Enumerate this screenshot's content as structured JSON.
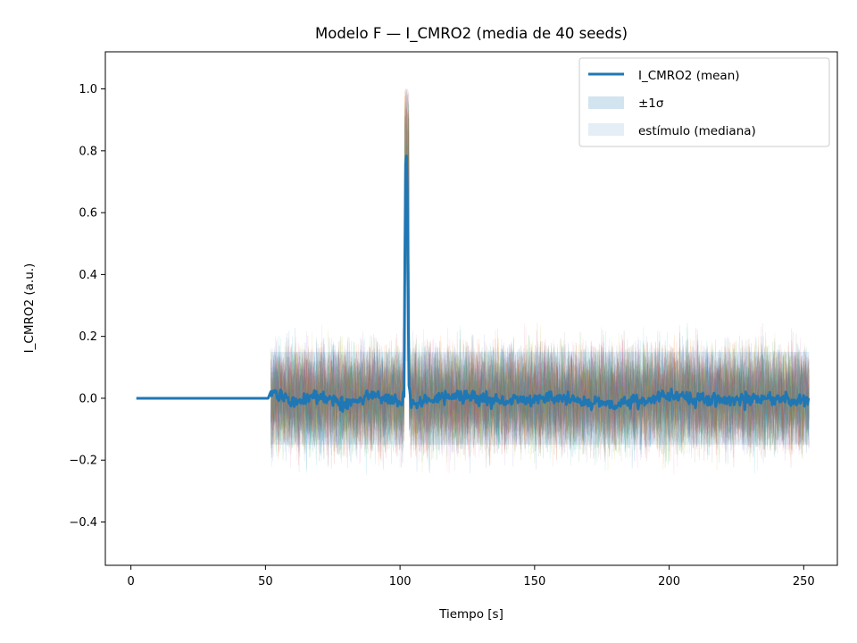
{
  "chart_data": {
    "type": "line",
    "title": "Modelo F — I_CMRO2 (media de 40 seeds)",
    "xlabel": "Tiempo [s]",
    "ylabel": "I_CMRO2 (a.u.)",
    "xlim": [
      -9.5,
      262.5
    ],
    "ylim": [
      -0.54,
      1.12
    ],
    "x_ticks": [
      0,
      50,
      100,
      150,
      200,
      250
    ],
    "y_ticks": [
      -0.4,
      -0.2,
      0.0,
      0.2,
      0.4,
      0.6,
      0.8,
      1.0
    ],
    "x_tick_labels": [
      "0",
      "50",
      "100",
      "150",
      "200",
      "250"
    ],
    "y_tick_labels": [
      "−0.4",
      "−0.2",
      "0.0",
      "0.2",
      "0.4",
      "0.6",
      "0.8",
      "1.0"
    ],
    "n_seeds": 40,
    "legend_position": "top-right",
    "legend": [
      {
        "label": "I_CMRO2 (mean)",
        "kind": "line",
        "color": "#1f77b4"
      },
      {
        "label": "±1σ",
        "kind": "patch",
        "color": "#1f77b4",
        "opacity": 0.2
      },
      {
        "label": "estímulo (mediana)",
        "kind": "patch",
        "color": "#1f77b4",
        "opacity": 0.12
      }
    ],
    "series": [
      {
        "name": "I_CMRO2 (mean)",
        "color": "#1f77b4",
        "points": [
          {
            "x": 2,
            "y": 0.0
          },
          {
            "x": 51,
            "y": 0.0
          },
          {
            "x": 52,
            "y": 0.02
          },
          {
            "x": 60,
            "y": -0.01
          },
          {
            "x": 70,
            "y": 0.01
          },
          {
            "x": 80,
            "y": -0.02
          },
          {
            "x": 90,
            "y": 0.01
          },
          {
            "x": 100,
            "y": -0.01
          },
          {
            "x": 101.5,
            "y": 0.0
          },
          {
            "x": 102,
            "y": 0.75
          },
          {
            "x": 102.6,
            "y": 0.8
          },
          {
            "x": 103.2,
            "y": 0.05
          },
          {
            "x": 104,
            "y": -0.02
          },
          {
            "x": 120,
            "y": 0.01
          },
          {
            "x": 140,
            "y": -0.01
          },
          {
            "x": 160,
            "y": 0.0
          },
          {
            "x": 180,
            "y": -0.02
          },
          {
            "x": 200,
            "y": 0.01
          },
          {
            "x": 220,
            "y": -0.01
          },
          {
            "x": 240,
            "y": 0.0
          },
          {
            "x": 252,
            "y": -0.01
          }
        ],
        "noise_amplitude": 0.03
      }
    ],
    "band": {
      "name": "±1σ",
      "x_start": 52,
      "x_end": 252,
      "sigma": 0.15,
      "peak": {
        "x": 102.6,
        "y_low": 0.6,
        "y_high": 1.0
      }
    },
    "seed_traces": {
      "x_start": 52,
      "x_end": 252,
      "extent_low": -0.42,
      "extent_high": 0.42,
      "colors": [
        "#1f77b4",
        "#ff7f0e",
        "#2ca02c",
        "#d62728",
        "#9467bd",
        "#8c564b",
        "#e377c2",
        "#7f7f7f",
        "#bcbd22",
        "#17becf"
      ]
    }
  }
}
